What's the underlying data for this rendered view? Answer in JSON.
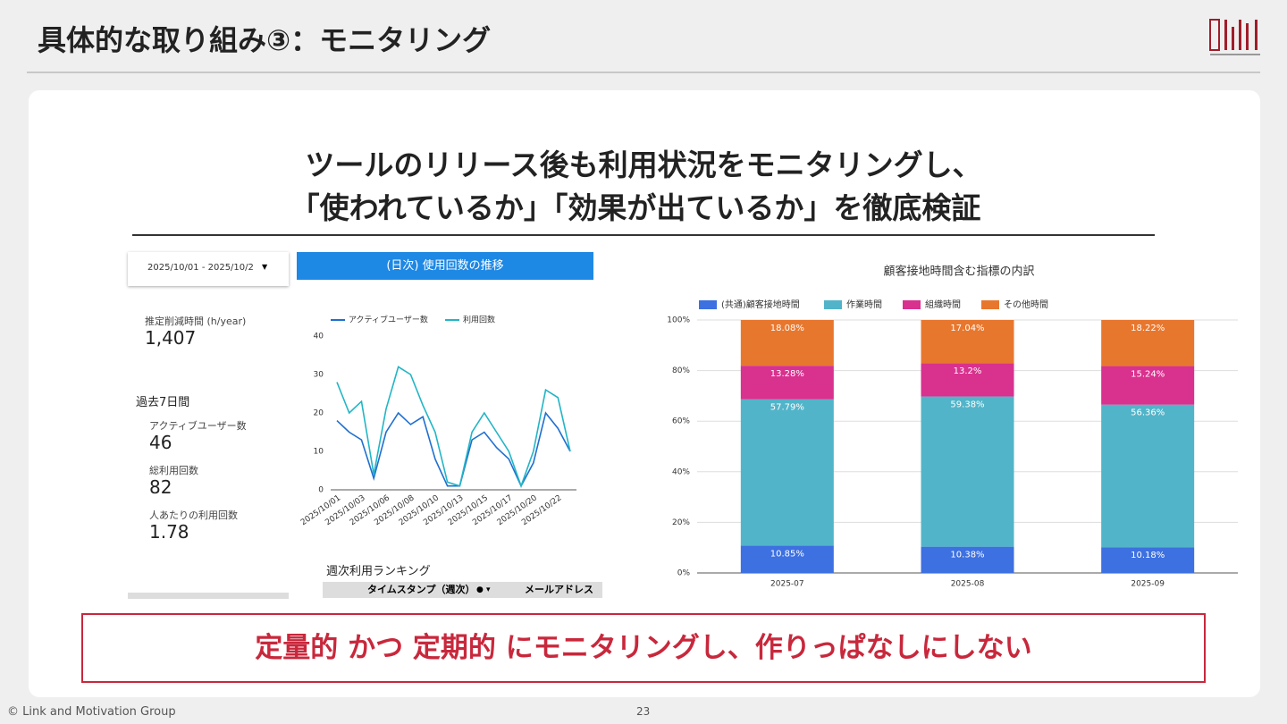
{
  "header": {
    "title": "具体的な取り組み③：モニタリング"
  },
  "headline": {
    "lines": [
      "ツールのリリース後も利用状況をモニタリングし、",
      "「使われているか」「効果が出ているか」を徹底検証"
    ]
  },
  "dashboard": {
    "date_range": "2025/10/01 - 2025/10/2",
    "chart_header": "(日次) 使用回数の推移",
    "metrics": [
      {
        "label": "推定削減時間 (h/year)",
        "value": "1,407"
      }
    ],
    "section": "過去7日間",
    "weekly_metrics": [
      {
        "label": "アクティブユーザー数",
        "value": "46"
      },
      {
        "label": "総利用回数",
        "value": "82"
      },
      {
        "label": "人あたりの利用回数",
        "value": "1.78"
      }
    ],
    "ranking": {
      "title": "週次利用ランキング",
      "columns": [
        "タイムスタンプ（週次）",
        "メールアドレス"
      ]
    }
  },
  "chart_data": [
    {
      "type": "line",
      "categories": [
        "2025/10/01",
        null,
        "2025/10/03",
        null,
        "2025/10/06",
        null,
        "2025/10/08",
        null,
        "2025/10/10",
        null,
        "2025/10/13",
        null,
        "2025/10/15",
        null,
        "2025/10/17",
        null,
        "2025/10/20",
        null,
        "2025/10/22",
        null
      ],
      "series": [
        {
          "name": "アクティブユーザー数",
          "color": "#1f6fd0",
          "values": [
            18,
            15,
            13,
            3,
            15,
            20,
            17,
            19,
            8,
            1,
            1,
            13,
            15,
            11,
            8,
            1,
            7,
            20,
            16,
            10
          ]
        },
        {
          "name": "利用回数",
          "color": "#22b5c5",
          "values": [
            28,
            20,
            23,
            4,
            21,
            32,
            30,
            22,
            15,
            2,
            1,
            15,
            20,
            15,
            10,
            1,
            10,
            26,
            24,
            10
          ]
        }
      ],
      "ylim": [
        0,
        40
      ],
      "yticks": [
        0,
        10,
        20,
        30,
        40
      ],
      "grid": false,
      "legend": "top"
    },
    {
      "type": "stacked_bar",
      "title": "顧客接地時間含む指標の内訳",
      "categories": [
        "2025-07",
        "2025-08",
        "2025-09"
      ],
      "series": [
        {
          "name": "(共通)顧客接地時間",
          "color": "#3d70e0",
          "values": [
            10.85,
            10.38,
            10.18
          ],
          "value_labels": [
            "10.85%",
            "10.38%",
            "10.18%"
          ]
        },
        {
          "name": "作業時間",
          "color": "#52b4c9",
          "values": [
            57.79,
            59.38,
            56.36
          ],
          "value_labels": [
            "57.79%",
            "59.38%",
            "56.36%"
          ]
        },
        {
          "name": "組織時間",
          "color": "#d9318e",
          "values": [
            13.28,
            13.2,
            15.24
          ],
          "value_labels": [
            "13.28%",
            "13.2%",
            "15.24%"
          ]
        },
        {
          "name": "その他時間",
          "color": "#e8772e",
          "values": [
            18.08,
            17.04,
            18.22
          ],
          "value_labels": [
            "18.08%",
            "17.04%",
            "18.22%"
          ]
        }
      ],
      "ylim": [
        0,
        100
      ],
      "yticks": [
        {
          "value": 0,
          "label": "0%"
        },
        {
          "value": 20,
          "label": "20%"
        },
        {
          "value": 40,
          "label": "40%"
        },
        {
          "value": 60,
          "label": "60%"
        },
        {
          "value": 80,
          "label": "80%"
        },
        {
          "value": 100,
          "label": "100%"
        }
      ],
      "grid": true,
      "legend": "top"
    }
  ],
  "callout": "定量的 かつ 定期的 にモニタリングし、作りっぱなしにしない",
  "footer": {
    "copyright": "© Link and Motivation Group",
    "page": "23"
  }
}
